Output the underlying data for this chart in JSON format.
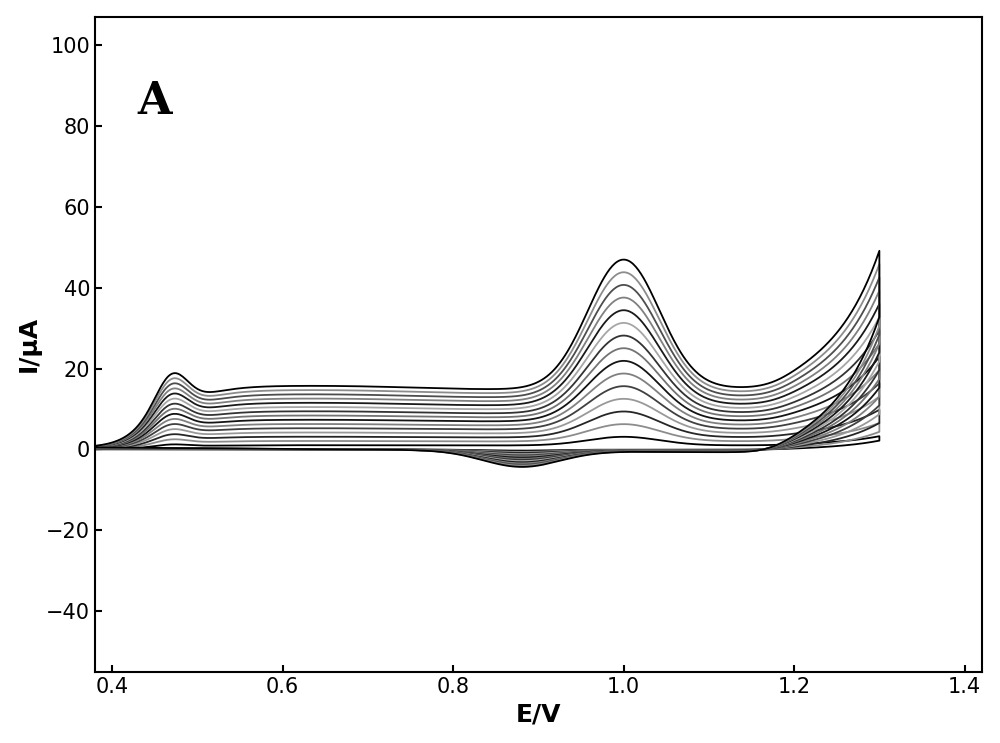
{
  "xlabel": "E/V",
  "ylabel": "I/μA",
  "label_A": "A",
  "xlim": [
    0.38,
    1.42
  ],
  "ylim": [
    -55,
    107
  ],
  "xticks": [
    0.4,
    0.6,
    0.8,
    1.0,
    1.2,
    1.4
  ],
  "yticks": [
    -40,
    -20,
    0,
    20,
    40,
    60,
    80,
    100
  ],
  "n_curves": 15,
  "bg_color": "#ffffff",
  "axis_color": "#000000",
  "label_fontsize": 18,
  "tick_fontsize": 15,
  "ann_fontsize": 32
}
